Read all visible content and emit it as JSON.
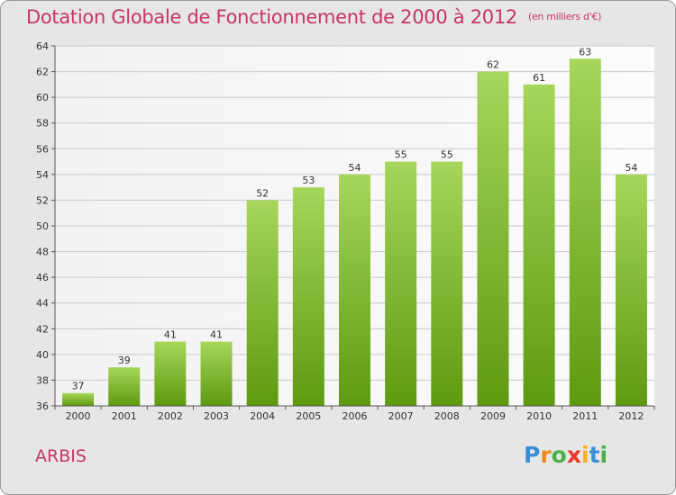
{
  "title": "Dotation Globale de Fonctionnement de 2000 à 2012",
  "subtitle": "(en milliers d'€)",
  "place": "ARBIS",
  "logo": {
    "text": "Proxiti",
    "letter_colors": [
      "#3a8ed6",
      "#f08a1c",
      "#4ab04a",
      "#e8392e",
      "#f6b21a",
      "#3a8ed6",
      "#4ab04a"
    ]
  },
  "colors": {
    "title": "#c8346a",
    "bar_light": "#a6d65a",
    "bar_dark": "#5e9a10",
    "background": "#e6e6e6"
  },
  "chart_data": {
    "type": "bar",
    "categories": [
      "2000",
      "2001",
      "2002",
      "2003",
      "2004",
      "2005",
      "2006",
      "2007",
      "2008",
      "2009",
      "2010",
      "2011",
      "2012"
    ],
    "values": [
      37,
      39,
      41,
      41,
      52,
      53,
      54,
      55,
      55,
      62,
      61,
      63,
      54
    ],
    "ylim": [
      36,
      64
    ],
    "yticks": [
      36,
      38,
      40,
      42,
      44,
      46,
      48,
      50,
      52,
      54,
      56,
      58,
      60,
      62,
      64
    ],
    "grid": true,
    "data_labels": true
  }
}
